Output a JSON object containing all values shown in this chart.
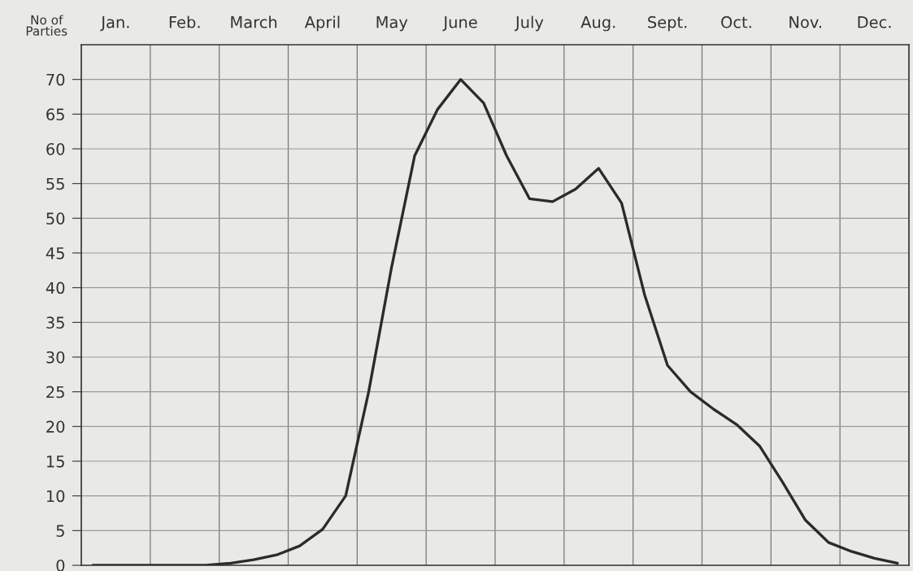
{
  "chart_data": {
    "type": "line",
    "ylabel": "No of\nParties",
    "categories": [
      null,
      "Jan.",
      null,
      null,
      "Feb.",
      null,
      null,
      "March",
      null,
      null,
      "April",
      null,
      null,
      "May",
      null,
      null,
      "June",
      null,
      null,
      "July",
      null,
      null,
      "Aug.",
      null,
      null,
      "Sept.",
      null,
      null,
      "Oct.",
      null,
      null,
      "Nov.",
      null,
      null,
      "Dec.",
      null
    ],
    "series": [
      {
        "color": "#2b2b2b",
        "values": [
          0,
          0,
          0,
          0,
          0,
          0.05,
          0.3,
          0.8,
          1.5,
          2.8,
          5.2,
          10,
          25,
          43,
          59,
          65.7,
          70,
          66.6,
          59,
          52.8,
          52.4,
          54.2,
          57.2,
          52.2,
          39,
          28.8,
          25,
          22.5,
          20.3,
          17.2,
          12,
          6.5,
          3.3,
          2,
          1,
          0.3
        ]
      }
    ],
    "ylim": [
      0,
      75
    ],
    "yticks": [
      0,
      5,
      10,
      15,
      20,
      25,
      30,
      35,
      40,
      45,
      50,
      55,
      60,
      65,
      70
    ],
    "grid": true,
    "line_style": "solid",
    "marker": "none"
  }
}
